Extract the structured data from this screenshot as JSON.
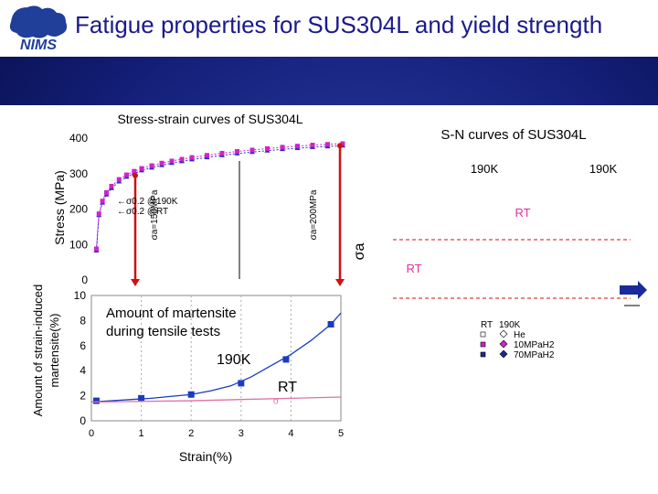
{
  "slide": {
    "title": "Fatigue properties for SUS304L and yield strength",
    "logo_text": "NIMS",
    "colors": {
      "background": "#14207a",
      "title": "#1a1a8c",
      "logo": "#1f3f99"
    }
  },
  "chart_data": [
    {
      "id": "stress-strain",
      "type": "line",
      "title": "Stress-strain curves of SUS304L",
      "ylabel": "Stress (MPa)",
      "xlabel": "",
      "ylim": [
        0,
        400
      ],
      "yticks": [
        "0",
        "100",
        "200",
        "300",
        "400"
      ],
      "series": [
        {
          "key": "190K",
          "color": "#2a2ad0",
          "marker": "triangle",
          "x": [
            0.1,
            0.15,
            0.22,
            0.3,
            0.4,
            0.55,
            0.7,
            0.85,
            1.0,
            1.2,
            1.4,
            1.6,
            1.8,
            2.0,
            2.3,
            2.6,
            2.9,
            3.2,
            3.5,
            3.8,
            4.1,
            4.4,
            4.7,
            5.0
          ],
          "y": [
            80,
            180,
            215,
            238,
            256,
            275,
            288,
            298,
            306,
            314,
            321,
            327,
            332,
            337,
            343,
            349,
            354,
            358,
            362,
            366,
            369,
            372,
            374,
            376
          ]
        },
        {
          "key": "RT",
          "color": "#d024c8",
          "marker": "square",
          "x": [
            0.1,
            0.15,
            0.22,
            0.3,
            0.4,
            0.55,
            0.7,
            0.85,
            1.0,
            1.2,
            1.4,
            1.6,
            1.8,
            2.0,
            2.3,
            2.6,
            2.9,
            3.2,
            3.5,
            3.8,
            4.1,
            4.4,
            4.7,
            5.0
          ],
          "y": [
            85,
            184,
            220,
            244,
            262,
            281,
            294,
            304,
            312,
            320,
            327,
            333,
            338,
            343,
            349,
            355,
            360,
            364,
            368,
            372,
            375,
            378,
            380,
            382
          ]
        }
      ],
      "annotations": [
        {
          "key": "sigma_02_190K",
          "text": "←σ0.2 @190K"
        },
        {
          "key": "sigma_02_RT",
          "text": "←σ0.2 @RT"
        },
        {
          "key": "sa150",
          "text": "σa=150MPa",
          "stress": 150
        },
        {
          "key": "sa200",
          "text": "σa=200MPa",
          "stress": 200
        }
      ]
    },
    {
      "id": "martensite",
      "type": "line",
      "title": "Amount of martensite during tensile tests",
      "xlabel": "Strain(%)",
      "ylabel": "Amount of strain-induced martensite(%)",
      "xlim": [
        0,
        5
      ],
      "ylim": [
        0,
        10
      ],
      "xticks": [
        "0",
        "1",
        "2",
        "3",
        "4",
        "5"
      ],
      "yticks": [
        "0",
        "2",
        "4",
        "6",
        "8",
        "10"
      ],
      "series": [
        {
          "name": "190K",
          "color": "#1a3cc0",
          "x": [
            0,
            0.4,
            0.8,
            1.2,
            1.6,
            2.0,
            2.4,
            2.8,
            3.2,
            3.6,
            4.0,
            4.4,
            4.8,
            5.0
          ],
          "y": [
            1.5,
            1.6,
            1.7,
            1.8,
            1.95,
            2.1,
            2.4,
            2.8,
            3.5,
            4.4,
            5.3,
            6.4,
            7.7,
            8.6
          ],
          "markers_x": [
            0.1,
            1.0,
            2.0,
            3.0,
            3.9,
            4.8
          ],
          "markers_y": [
            1.6,
            1.8,
            2.1,
            3.0,
            4.9,
            7.7
          ]
        },
        {
          "name": "RT",
          "color": "#e070a8",
          "x": [
            0,
            1.0,
            2.0,
            3.0,
            4.0,
            5.0
          ],
          "y": [
            1.5,
            1.55,
            1.6,
            1.7,
            1.8,
            1.9
          ],
          "markers_x": [
            3.7
          ],
          "markers_y": [
            1.7
          ]
        }
      ]
    },
    {
      "id": "sn-curves",
      "type": "line",
      "title": "S-N curves of SUS304L",
      "ylabel": "σa",
      "labels": [
        "190K",
        "190K",
        "RT",
        "RT"
      ],
      "legend": {
        "header_rt": "RT",
        "header_190k": "190K",
        "rows": [
          {
            "rt_color": "#ffffff",
            "k190_color": "#ffffff",
            "label": "He"
          },
          {
            "rt_color": "#d024c8",
            "k190_color": "#d024c8",
            "label": "10MPaH2"
          },
          {
            "rt_color": "#1a2a9a",
            "k190_color": "#1a2a9a",
            "label": "70MPaH2"
          }
        ]
      }
    }
  ]
}
